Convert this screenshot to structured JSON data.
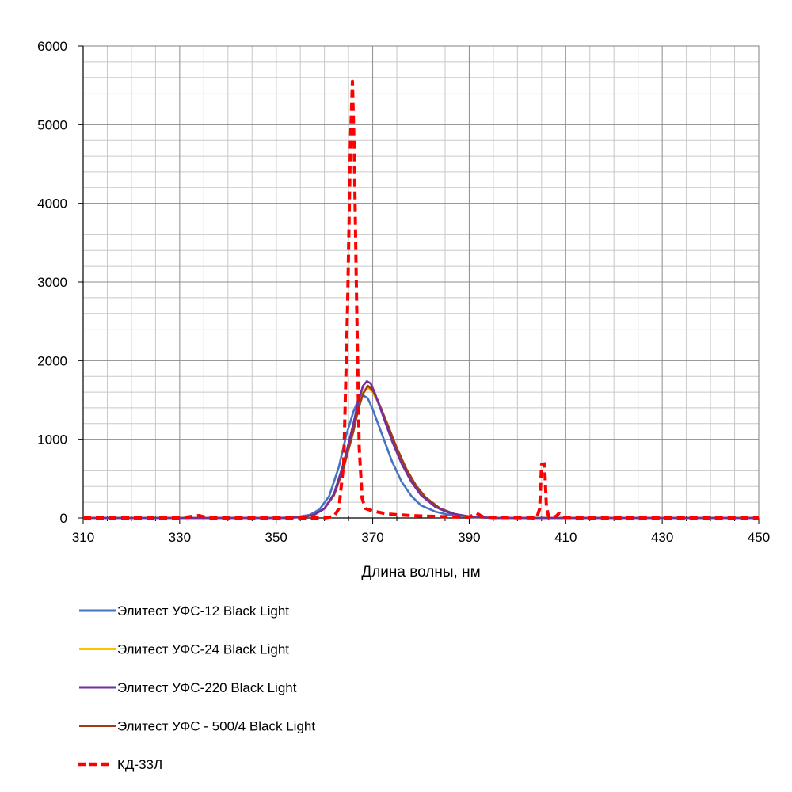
{
  "chart_data": {
    "type": "line",
    "title": "",
    "xlabel": "Длина волны, нм",
    "ylabel": "",
    "xlim": [
      310,
      450
    ],
    "ylim": [
      0,
      6000
    ],
    "x_ticks": [
      "310",
      "330",
      "350",
      "370",
      "390",
      "410",
      "430",
      "450"
    ],
    "y_ticks": [
      "0",
      "1000",
      "2000",
      "3000",
      "4000",
      "5000",
      "6000"
    ],
    "grid": true,
    "legend_position": "bottom",
    "series": [
      {
        "name": "Элитест УФС-12 Black Light",
        "color": "#4472C4",
        "style": "solid",
        "points": [
          [
            310,
            0
          ],
          [
            350,
            0
          ],
          [
            354,
            10
          ],
          [
            357,
            40
          ],
          [
            359,
            110
          ],
          [
            361,
            280
          ],
          [
            363,
            650
          ],
          [
            364.5,
            1050
          ],
          [
            366,
            1350
          ],
          [
            367,
            1500
          ],
          [
            368,
            1560
          ],
          [
            369,
            1520
          ],
          [
            370,
            1380
          ],
          [
            372,
            1050
          ],
          [
            374,
            720
          ],
          [
            376,
            460
          ],
          [
            378,
            280
          ],
          [
            380,
            160
          ],
          [
            383,
            80
          ],
          [
            386,
            35
          ],
          [
            390,
            10
          ],
          [
            395,
            0
          ],
          [
            450,
            0
          ]
        ]
      },
      {
        "name": "Элитест УФС-24 Black Light",
        "color": "#FFC000",
        "style": "solid",
        "points": [
          [
            310,
            0
          ],
          [
            352,
            0
          ],
          [
            356,
            15
          ],
          [
            358,
            45
          ],
          [
            360,
            120
          ],
          [
            362,
            300
          ],
          [
            364,
            650
          ],
          [
            365.5,
            1000
          ],
          [
            367,
            1400
          ],
          [
            368,
            1600
          ],
          [
            369,
            1650
          ],
          [
            370,
            1600
          ],
          [
            371,
            1480
          ],
          [
            373,
            1180
          ],
          [
            375,
            870
          ],
          [
            377,
            600
          ],
          [
            379,
            390
          ],
          [
            381,
            240
          ],
          [
            384,
            110
          ],
          [
            387,
            45
          ],
          [
            390,
            15
          ],
          [
            395,
            0
          ],
          [
            450,
            0
          ]
        ]
      },
      {
        "name": "Элитест УФС-220 Black Light",
        "color": "#7030A0",
        "style": "solid",
        "points": [
          [
            310,
            0
          ],
          [
            352,
            0
          ],
          [
            356,
            15
          ],
          [
            358,
            45
          ],
          [
            360,
            120
          ],
          [
            362,
            310
          ],
          [
            364,
            700
          ],
          [
            366,
            1200
          ],
          [
            367,
            1480
          ],
          [
            368,
            1680
          ],
          [
            368.8,
            1740
          ],
          [
            369.6,
            1710
          ],
          [
            370.5,
            1580
          ],
          [
            372,
            1320
          ],
          [
            374,
            980
          ],
          [
            376,
            690
          ],
          [
            378,
            460
          ],
          [
            380,
            290
          ],
          [
            383,
            140
          ],
          [
            386,
            60
          ],
          [
            390,
            20
          ],
          [
            395,
            0
          ],
          [
            450,
            0
          ]
        ]
      },
      {
        "name": "Элитест УФС - 500/4 Black Light",
        "color": "#A5390F",
        "style": "solid",
        "points": [
          [
            310,
            0
          ],
          [
            352,
            0
          ],
          [
            356,
            15
          ],
          [
            358,
            45
          ],
          [
            360,
            120
          ],
          [
            362,
            290
          ],
          [
            364,
            640
          ],
          [
            366,
            1100
          ],
          [
            367,
            1380
          ],
          [
            368,
            1580
          ],
          [
            369,
            1680
          ],
          [
            370,
            1620
          ],
          [
            371,
            1500
          ],
          [
            373,
            1200
          ],
          [
            375,
            890
          ],
          [
            377,
            620
          ],
          [
            379,
            410
          ],
          [
            381,
            260
          ],
          [
            384,
            120
          ],
          [
            387,
            50
          ],
          [
            390,
            15
          ],
          [
            395,
            0
          ],
          [
            450,
            0
          ]
        ]
      },
      {
        "name": "КД-33Л",
        "color": "#FF0000",
        "style": "dashed",
        "points": [
          [
            310,
            0
          ],
          [
            330,
            0
          ],
          [
            334,
            30
          ],
          [
            336,
            0
          ],
          [
            360,
            0
          ],
          [
            362,
            20
          ],
          [
            363,
            120
          ],
          [
            364,
            700
          ],
          [
            364.8,
            2700
          ],
          [
            365.4,
            4800
          ],
          [
            365.8,
            5550
          ],
          [
            366.2,
            4600
          ],
          [
            366.7,
            2600
          ],
          [
            367.2,
            900
          ],
          [
            367.8,
            250
          ],
          [
            368.5,
            120
          ],
          [
            370,
            90
          ],
          [
            373,
            50
          ],
          [
            378,
            30
          ],
          [
            385,
            15
          ],
          [
            390,
            10
          ],
          [
            391.5,
            60
          ],
          [
            393,
            10
          ],
          [
            404,
            0
          ],
          [
            404.6,
            120
          ],
          [
            405,
            680
          ],
          [
            405.6,
            690
          ],
          [
            406,
            150
          ],
          [
            406.5,
            0
          ],
          [
            408,
            20
          ],
          [
            408.6,
            60
          ],
          [
            409.3,
            10
          ],
          [
            412,
            0
          ],
          [
            450,
            0
          ]
        ]
      }
    ]
  }
}
